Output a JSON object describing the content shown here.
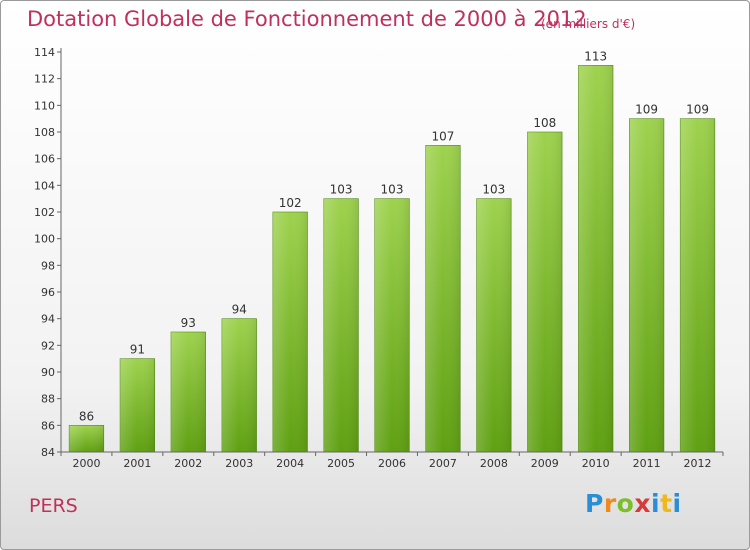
{
  "header": {
    "title": "Dotation Globale de Fonctionnement de 2000 à 2012",
    "unit": "(en milliers d'€)"
  },
  "footer": {
    "commune": "PERS",
    "logo_letters": [
      "P",
      "r",
      "o",
      "x",
      "i",
      "t",
      "i"
    ]
  },
  "colors": {
    "title": "#c0305c",
    "bar": "#7cbd2a",
    "axis": "#666666"
  },
  "chart_data": {
    "type": "bar",
    "title": "Dotation Globale de Fonctionnement de 2000 à 2012",
    "xlabel": "",
    "ylabel": "",
    "categories": [
      "2000",
      "2001",
      "2002",
      "2003",
      "2004",
      "2005",
      "2006",
      "2007",
      "2008",
      "2009",
      "2010",
      "2011",
      "2012"
    ],
    "values": [
      86,
      91,
      93,
      94,
      102,
      103,
      103,
      107,
      103,
      108,
      113,
      109,
      109
    ],
    "ylim": [
      84,
      114
    ],
    "yticks": [
      84,
      86,
      88,
      90,
      92,
      94,
      96,
      98,
      100,
      102,
      104,
      106,
      108,
      110,
      112,
      114
    ],
    "grid": false
  }
}
